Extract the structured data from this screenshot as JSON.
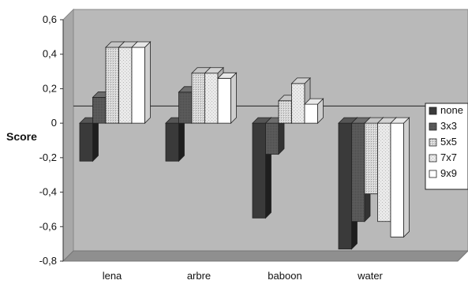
{
  "chart_data": {
    "type": "bar",
    "title": "",
    "xlabel": "",
    "ylabel": "Score",
    "ylim": [
      -0.8,
      0.6
    ],
    "yticks": [
      "0,6",
      "0,4",
      "0,2",
      "0",
      "-0,2",
      "-0,4",
      "-0,6",
      "-0,8"
    ],
    "ytick_values": [
      0.6,
      0.4,
      0.2,
      0,
      -0.2,
      -0.4,
      -0.6,
      -0.8
    ],
    "categories": [
      "lena",
      "arbre",
      "baboon",
      "water"
    ],
    "series": [
      {
        "name": "none",
        "color": "#3a3a3a",
        "values": [
          -0.22,
          -0.22,
          -0.55,
          -0.73
        ]
      },
      {
        "name": "3x3",
        "color": "#5e5e5e",
        "values": [
          0.15,
          0.18,
          -0.18,
          -0.57
        ]
      },
      {
        "name": "5x5",
        "color": "#d6d6d6",
        "values": [
          0.44,
          0.29,
          0.13,
          -0.41
        ]
      },
      {
        "name": "7x7",
        "color": "#e6e6e6",
        "values": [
          0.44,
          0.29,
          0.23,
          -0.57
        ]
      },
      {
        "name": "9x9",
        "color": "#ffffff",
        "values": [
          0.44,
          0.26,
          0.11,
          -0.66
        ]
      }
    ],
    "baseline_marker": 0.04,
    "grid": false,
    "legend_position": "right",
    "three_d": true,
    "wall_color": "#b9b9b9",
    "floor_color": "#8f8f8f"
  }
}
